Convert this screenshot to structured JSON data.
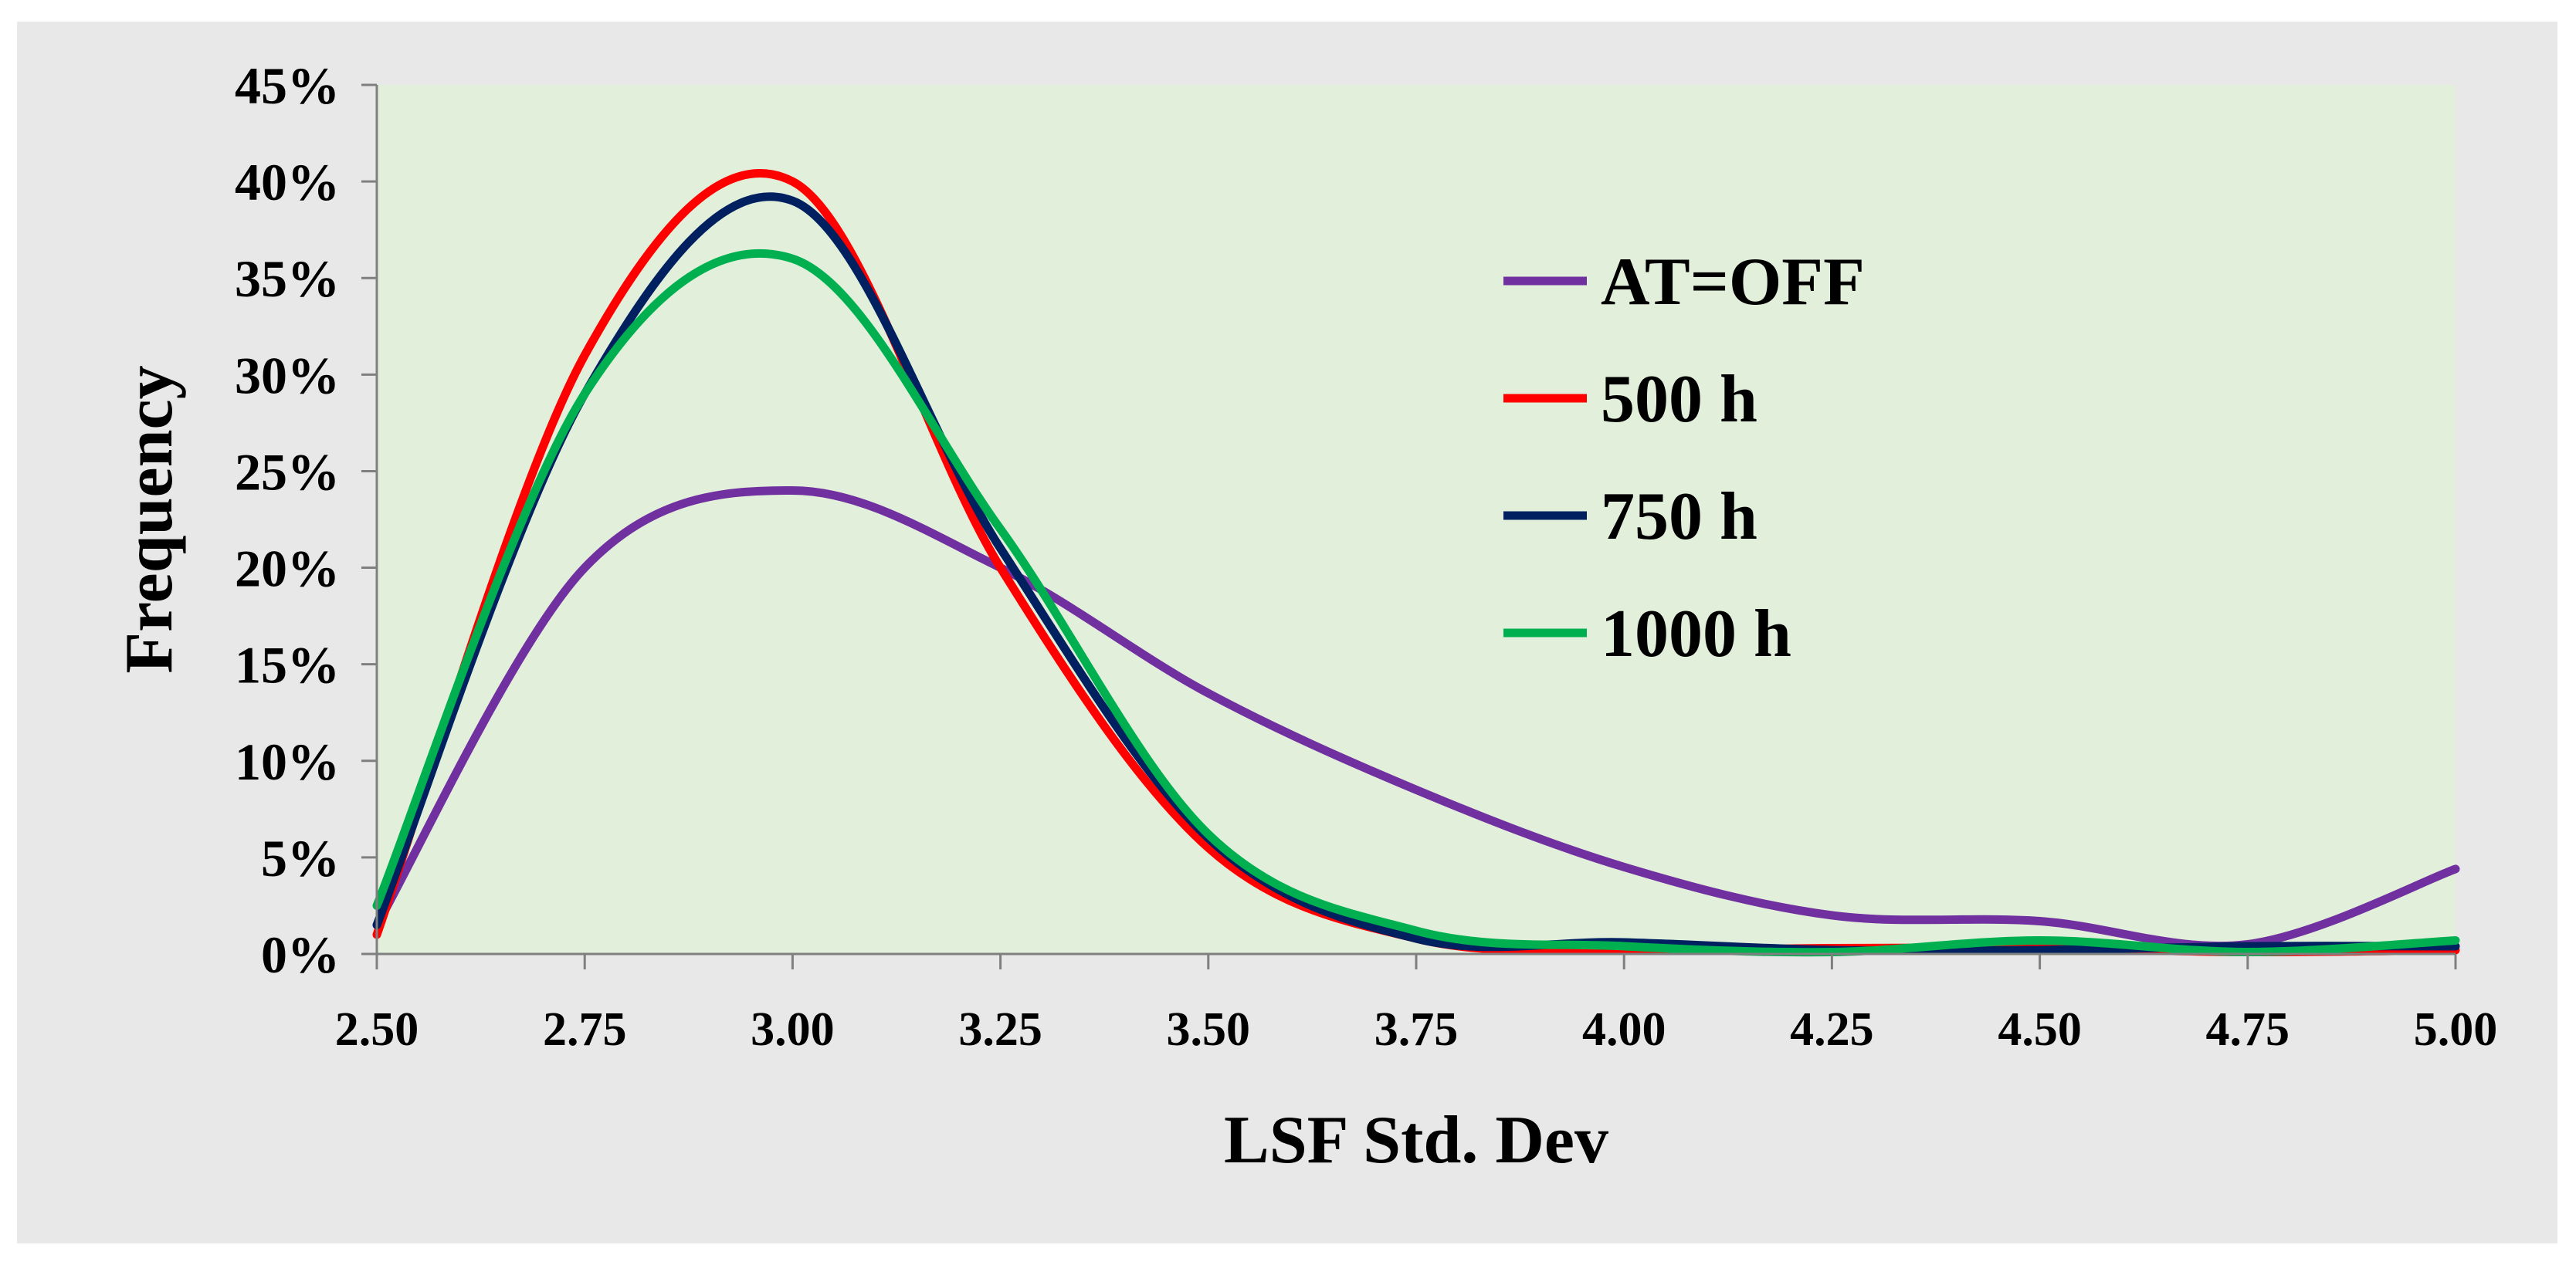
{
  "chart_data": {
    "type": "line",
    "title": "",
    "xlabel": "LSF Std. Dev",
    "ylabel": "Frequency",
    "xlim": [
      2.5,
      5.0
    ],
    "ylim": [
      0,
      0.45
    ],
    "x_ticks": [
      2.5,
      2.75,
      3.0,
      3.25,
      3.5,
      3.75,
      4.0,
      4.25,
      4.5,
      4.75,
      5.0
    ],
    "x_tick_labels": [
      "2.50",
      "2.75",
      "3.00",
      "3.25",
      "3.50",
      "3.75",
      "4.00",
      "4.25",
      "4.50",
      "4.75",
      "5.00"
    ],
    "y_ticks": [
      0,
      0.05,
      0.1,
      0.15,
      0.2,
      0.25,
      0.3,
      0.35,
      0.4,
      0.45
    ],
    "y_tick_labels": [
      "0%",
      "5%",
      "10%",
      "15%",
      "20%",
      "25%",
      "30%",
      "35%",
      "40%",
      "45%"
    ],
    "grid": false,
    "plot_background": "#e2efda",
    "frame_background": "#e8e8e8",
    "legend_position": "right, inside plot area",
    "x": [
      2.5,
      2.75,
      3.0,
      3.25,
      3.5,
      3.75,
      4.0,
      4.25,
      4.5,
      4.75,
      5.0
    ],
    "series": [
      {
        "name": "AT=OFF",
        "color": "#7030a0",
        "values": [
          0.015,
          0.2,
          0.24,
          0.2,
          0.135,
          0.085,
          0.045,
          0.02,
          0.017,
          0.005,
          0.044
        ]
      },
      {
        "name": "500 h",
        "color": "#ff0000",
        "values": [
          0.01,
          0.31,
          0.4,
          0.2,
          0.055,
          0.008,
          0.002,
          0.003,
          0.003,
          0.001,
          0.002
        ]
      },
      {
        "name": "750 h",
        "color": "#002060",
        "values": [
          0.015,
          0.29,
          0.39,
          0.21,
          0.06,
          0.008,
          0.006,
          0.002,
          0.002,
          0.004,
          0.004
        ]
      },
      {
        "name": "1000 h",
        "color": "#00b050",
        "values": [
          0.025,
          0.29,
          0.36,
          0.22,
          0.062,
          0.012,
          0.004,
          0.001,
          0.007,
          0.001,
          0.007
        ]
      }
    ]
  }
}
